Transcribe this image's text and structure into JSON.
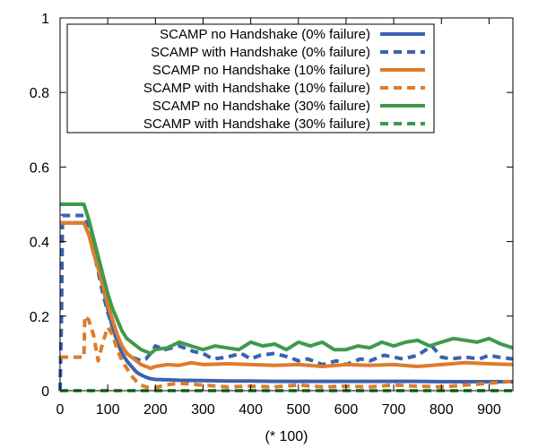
{
  "chart_data": {
    "type": "line",
    "title": "",
    "xlabel": "(* 100)",
    "ylabel": "",
    "xlim": [
      0,
      950
    ],
    "ylim": [
      0,
      1
    ],
    "xticks": [
      0,
      100,
      200,
      300,
      400,
      500,
      600,
      700,
      800,
      900
    ],
    "xtick_labels": [
      "0",
      "100",
      "200",
      "300",
      "400",
      "500",
      "600",
      "700",
      "800",
      "900"
    ],
    "yticks": [
      0,
      0.2,
      0.4,
      0.6,
      0.8,
      1
    ],
    "ytick_labels": [
      "0",
      "0.2",
      "0.4",
      "0.6",
      "0.8",
      "1"
    ],
    "grid": false,
    "legend_position": "top-left",
    "series": [
      {
        "name": "SCAMP no Handshake (0% failure)",
        "color": "#3a62b0",
        "dash": "solid",
        "x": [
          0,
          5,
          50,
          60,
          70,
          80,
          90,
          100,
          110,
          120,
          130,
          140,
          150,
          160,
          170,
          180,
          190,
          200,
          225,
          250,
          300,
          350,
          400,
          450,
          500,
          550,
          600,
          650,
          700,
          750,
          800,
          850,
          900,
          950
        ],
        "y": [
          0.45,
          0.45,
          0.45,
          0.42,
          0.38,
          0.33,
          0.28,
          0.22,
          0.17,
          0.13,
          0.1,
          0.08,
          0.065,
          0.05,
          0.042,
          0.036,
          0.032,
          0.03,
          0.029,
          0.028,
          0.027,
          0.026,
          0.026,
          0.025,
          0.025,
          0.025,
          0.025,
          0.025,
          0.025,
          0.025,
          0.024,
          0.024,
          0.024,
          0.024
        ]
      },
      {
        "name": "SCAMP with Handshake (0% failure)",
        "color": "#3a62b0",
        "dash": "dashed",
        "x": [
          0,
          3,
          5,
          50,
          60,
          70,
          80,
          90,
          100,
          110,
          120,
          130,
          140,
          150,
          160,
          170,
          180,
          190,
          200,
          220,
          250,
          280,
          300,
          320,
          350,
          380,
          400,
          420,
          450,
          480,
          500,
          520,
          550,
          580,
          600,
          630,
          650,
          680,
          700,
          720,
          750,
          780,
          800,
          820,
          850,
          880,
          900,
          920,
          950
        ],
        "y": [
          0,
          0.2,
          0.47,
          0.47,
          0.44,
          0.38,
          0.32,
          0.26,
          0.21,
          0.17,
          0.14,
          0.12,
          0.1,
          0.09,
          0.085,
          0.08,
          0.085,
          0.1,
          0.12,
          0.11,
          0.12,
          0.105,
          0.1,
          0.085,
          0.09,
          0.1,
          0.085,
          0.095,
          0.1,
          0.09,
          0.08,
          0.085,
          0.07,
          0.08,
          0.07,
          0.085,
          0.08,
          0.095,
          0.09,
          0.085,
          0.095,
          0.12,
          0.09,
          0.085,
          0.09,
          0.085,
          0.095,
          0.09,
          0.085
        ]
      },
      {
        "name": "SCAMP no Handshake (10% failure)",
        "color": "#e07b2a",
        "dash": "solid",
        "x": [
          0,
          5,
          50,
          60,
          70,
          80,
          90,
          100,
          110,
          120,
          130,
          140,
          150,
          160,
          170,
          180,
          190,
          200,
          225,
          250,
          275,
          300,
          350,
          400,
          450,
          500,
          550,
          600,
          650,
          700,
          750,
          800,
          850,
          900,
          950
        ],
        "y": [
          0.45,
          0.45,
          0.45,
          0.42,
          0.37,
          0.33,
          0.28,
          0.23,
          0.19,
          0.15,
          0.12,
          0.1,
          0.09,
          0.08,
          0.07,
          0.065,
          0.06,
          0.065,
          0.07,
          0.068,
          0.075,
          0.07,
          0.072,
          0.07,
          0.068,
          0.07,
          0.065,
          0.07,
          0.068,
          0.07,
          0.065,
          0.07,
          0.075,
          0.072,
          0.07
        ]
      },
      {
        "name": "SCAMP with Handshake (10% failure)",
        "color": "#e07b2a",
        "dash": "dashed",
        "x": [
          0,
          5,
          50,
          52,
          60,
          70,
          80,
          90,
          100,
          110,
          120,
          130,
          140,
          150,
          160,
          170,
          180,
          190,
          200,
          220,
          250,
          300,
          350,
          400,
          450,
          500,
          550,
          600,
          650,
          700,
          750,
          800,
          850,
          900,
          950
        ],
        "y": [
          0.09,
          0.09,
          0.09,
          0.2,
          0.19,
          0.15,
          0.08,
          0.13,
          0.17,
          0.15,
          0.11,
          0.08,
          0.06,
          0.04,
          0.025,
          0.015,
          0.01,
          0.008,
          0.008,
          0.015,
          0.02,
          0.015,
          0.01,
          0.012,
          0.01,
          0.015,
          0.01,
          0.012,
          0.01,
          0.015,
          0.012,
          0.01,
          0.015,
          0.02,
          0.025
        ]
      },
      {
        "name": "SCAMP no Handshake (30% failure)",
        "color": "#3e9a4a",
        "dash": "solid",
        "x": [
          0,
          5,
          50,
          60,
          70,
          80,
          90,
          100,
          110,
          120,
          130,
          140,
          150,
          160,
          170,
          180,
          190,
          200,
          225,
          250,
          275,
          300,
          325,
          350,
          375,
          400,
          425,
          450,
          475,
          500,
          525,
          550,
          575,
          600,
          625,
          650,
          675,
          700,
          725,
          750,
          775,
          800,
          825,
          850,
          875,
          900,
          925,
          950
        ],
        "y": [
          0.5,
          0.5,
          0.5,
          0.46,
          0.41,
          0.36,
          0.31,
          0.26,
          0.22,
          0.19,
          0.16,
          0.14,
          0.13,
          0.12,
          0.11,
          0.105,
          0.1,
          0.11,
          0.115,
          0.13,
          0.12,
          0.11,
          0.12,
          0.115,
          0.11,
          0.13,
          0.12,
          0.125,
          0.11,
          0.13,
          0.12,
          0.13,
          0.11,
          0.11,
          0.12,
          0.115,
          0.13,
          0.12,
          0.13,
          0.135,
          0.12,
          0.13,
          0.14,
          0.135,
          0.13,
          0.14,
          0.125,
          0.115
        ]
      },
      {
        "name": "SCAMP with Handshake (30% failure)",
        "color": "#3e9a4a",
        "dash": "dashed",
        "x": [
          0,
          950
        ],
        "y": [
          0,
          0
        ]
      }
    ]
  }
}
